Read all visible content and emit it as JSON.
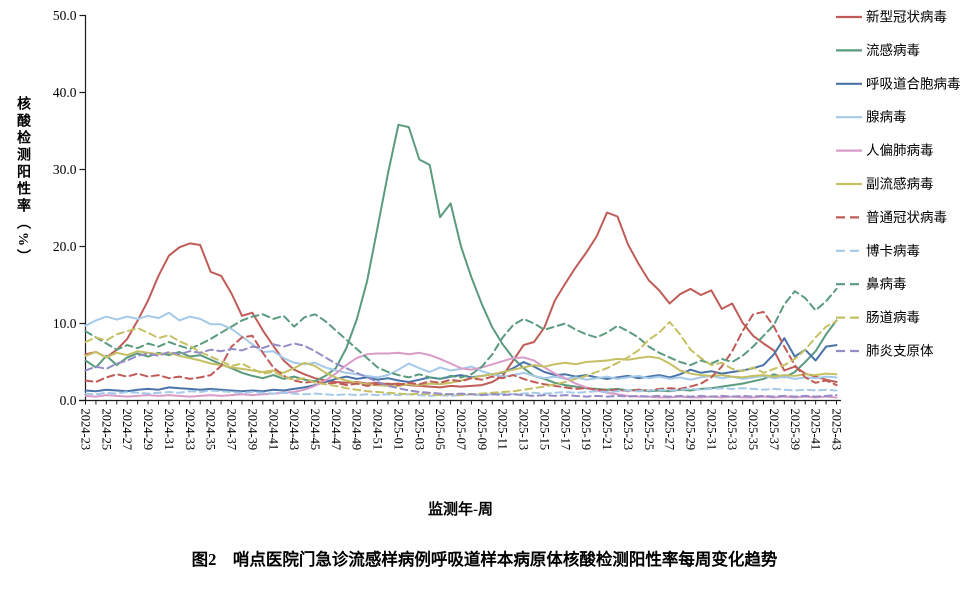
{
  "figure": {
    "caption": "图2　哨点医院门急诊流感样病例呼吸道样本病原体核酸检测阳性率每周变化趋势"
  },
  "chart_data": {
    "type": "line",
    "title": "",
    "xlabel": "监测年-周",
    "ylabel": "核酸检测阳性率（%）",
    "ylim": [
      0,
      50
    ],
    "yticks": [
      0,
      10,
      20,
      30,
      40,
      50
    ],
    "ytick_labels": [
      "0.0",
      "10.0",
      "20.0",
      "30.0",
      "40.0",
      "50.0"
    ],
    "x_label_every": 2,
    "grid": false,
    "legend_position": "right",
    "categories": [
      "2024-23",
      "2024-24",
      "2024-25",
      "2024-26",
      "2024-27",
      "2024-28",
      "2024-29",
      "2024-30",
      "2024-31",
      "2024-32",
      "2024-33",
      "2024-34",
      "2024-35",
      "2024-36",
      "2024-37",
      "2024-38",
      "2024-39",
      "2024-40",
      "2024-41",
      "2024-42",
      "2024-43",
      "2024-44",
      "2024-45",
      "2024-46",
      "2024-47",
      "2024-48",
      "2024-49",
      "2024-50",
      "2024-51",
      "2024-52",
      "2025-01",
      "2025-02",
      "2025-03",
      "2025-04",
      "2025-05",
      "2025-06",
      "2025-07",
      "2025-08",
      "2025-09",
      "2025-10",
      "2025-11",
      "2025-12",
      "2025-13",
      "2025-14",
      "2025-15",
      "2025-16",
      "2025-17",
      "2025-18",
      "2025-19",
      "2025-20",
      "2025-21",
      "2025-22",
      "2025-23",
      "2025-24",
      "2025-25",
      "2025-26",
      "2025-27",
      "2025-28",
      "2025-29",
      "2025-30",
      "2025-31",
      "2025-32",
      "2025-33",
      "2025-34",
      "2025-35",
      "2025-36",
      "2025-37",
      "2025-38",
      "2025-39",
      "2025-40",
      "2025-41",
      "2025-42",
      "2025-43"
    ],
    "series": [
      {
        "name": "新型冠状病毒",
        "color": "#C05C58",
        "line_style": "solid",
        "values": [
          6.0,
          6.3,
          5.6,
          6.6,
          8.0,
          10.4,
          13.0,
          16.2,
          18.8,
          19.9,
          20.4,
          20.2,
          16.7,
          16.2,
          13.9,
          11.0,
          11.4,
          9.1,
          7.1,
          5.2,
          4.0,
          3.4,
          2.9,
          2.6,
          2.4,
          2.3,
          2.4,
          2.2,
          2.3,
          2.1,
          2.2,
          2.0,
          1.9,
          1.8,
          1.7,
          1.9,
          1.8,
          1.9,
          2.0,
          2.4,
          3.2,
          5.2,
          7.2,
          7.6,
          9.5,
          13.0,
          15.2,
          17.3,
          19.2,
          21.3,
          24.4,
          23.9,
          20.3,
          17.8,
          15.6,
          14.3,
          12.6,
          13.8,
          14.5,
          13.7,
          14.3,
          11.9,
          12.6,
          10.1,
          8.4,
          7.4,
          6.5,
          3.9,
          4.4,
          3.5,
          3.1,
          2.7,
          2.4
        ]
      },
      {
        "name": "流感病毒",
        "color": "#5A9B7E",
        "line_style": "solid",
        "values": [
          5.2,
          4.3,
          5.8,
          4.6,
          5.6,
          6.1,
          5.7,
          6.2,
          5.9,
          6.3,
          5.7,
          5.9,
          5.3,
          4.7,
          4.2,
          3.6,
          3.2,
          2.9,
          3.3,
          2.8,
          3.1,
          2.7,
          2.5,
          3.2,
          4.2,
          6.8,
          10.5,
          15.5,
          22.5,
          29.5,
          35.8,
          35.5,
          31.3,
          30.6,
          23.8,
          25.6,
          20.0,
          16.0,
          12.5,
          9.5,
          7.3,
          5.5,
          4.2,
          3.2,
          2.8,
          2.3,
          2.0,
          1.8,
          1.6,
          1.5,
          1.4,
          1.5,
          1.3,
          1.4,
          1.2,
          1.3,
          1.2,
          1.4,
          1.3,
          1.5,
          1.6,
          1.8,
          2.0,
          2.2,
          2.5,
          2.8,
          3.4,
          3.0,
          3.7,
          5.0,
          6.4,
          8.6,
          10.4
        ]
      },
      {
        "name": "呼吸道合胞病毒",
        "color": "#4A74A8",
        "line_style": "solid",
        "values": [
          1.3,
          1.2,
          1.4,
          1.3,
          1.2,
          1.4,
          1.5,
          1.4,
          1.7,
          1.6,
          1.5,
          1.4,
          1.5,
          1.4,
          1.3,
          1.2,
          1.3,
          1.2,
          1.4,
          1.3,
          1.5,
          1.7,
          2.0,
          2.4,
          2.8,
          3.1,
          2.8,
          3.0,
          2.7,
          2.9,
          2.6,
          2.4,
          2.7,
          3.0,
          2.8,
          3.1,
          3.3,
          3.0,
          3.2,
          3.4,
          3.6,
          4.2,
          5.0,
          4.4,
          3.7,
          3.3,
          3.4,
          3.1,
          3.3,
          3.0,
          2.8,
          3.0,
          3.2,
          2.9,
          3.1,
          3.3,
          3.0,
          3.4,
          4.0,
          3.6,
          3.8,
          3.5,
          3.7,
          3.9,
          4.2,
          4.6,
          6.0,
          8.1,
          5.7,
          6.6,
          5.2,
          7.0,
          7.2
        ]
      },
      {
        "name": "腺病毒",
        "color": "#A5C9E8",
        "line_style": "solid",
        "values": [
          9.7,
          10.4,
          10.9,
          10.5,
          10.9,
          10.6,
          11.0,
          10.7,
          11.4,
          10.4,
          10.9,
          10.6,
          9.9,
          9.9,
          9.3,
          8.3,
          7.3,
          6.3,
          6.4,
          5.5,
          4.9,
          4.7,
          4.9,
          4.3,
          3.9,
          3.6,
          3.4,
          3.2,
          3.0,
          3.3,
          4.0,
          4.8,
          4.2,
          3.7,
          4.3,
          3.9,
          4.1,
          4.4,
          3.8,
          3.4,
          3.1,
          3.3,
          3.6,
          3.2,
          2.9,
          3.1,
          2.8,
          3.0,
          2.7,
          2.9,
          3.1,
          2.8,
          3.0,
          3.2,
          2.9,
          3.1,
          2.8,
          3.0,
          2.7,
          3.0,
          3.2,
          2.9,
          3.1,
          2.8,
          3.0,
          3.2,
          2.9,
          3.1,
          2.8,
          3.0,
          2.9,
          3.1,
          3.0
        ]
      },
      {
        "name": "人偏肺病毒",
        "color": "#D99CC8",
        "line_style": "solid",
        "values": [
          0.6,
          0.5,
          0.7,
          0.6,
          0.5,
          0.6,
          0.7,
          0.6,
          0.7,
          0.6,
          0.5,
          0.6,
          0.7,
          0.6,
          0.7,
          0.8,
          0.7,
          0.8,
          0.9,
          1.0,
          1.1,
          1.4,
          1.9,
          2.6,
          3.5,
          4.6,
          5.5,
          6.0,
          6.1,
          6.1,
          6.2,
          6.0,
          6.2,
          5.9,
          5.4,
          4.8,
          4.2,
          4.0,
          4.3,
          4.7,
          5.1,
          5.5,
          5.6,
          5.2,
          4.3,
          3.5,
          2.9,
          2.2,
          1.7,
          1.3,
          1.0,
          0.8,
          0.6,
          0.5,
          0.5,
          0.4,
          0.4,
          0.5,
          0.4,
          0.4,
          0.5,
          0.4,
          0.5,
          0.4,
          0.4,
          0.5,
          0.4,
          0.5,
          0.4,
          0.5,
          0.4,
          0.5,
          0.4
        ]
      },
      {
        "name": "副流感病毒",
        "color": "#C6C065",
        "line_style": "solid",
        "values": [
          5.8,
          6.3,
          5.6,
          6.2,
          5.9,
          6.4,
          6.2,
          6.0,
          6.2,
          5.8,
          5.5,
          5.2,
          4.8,
          4.6,
          4.3,
          4.1,
          3.9,
          3.7,
          3.9,
          3.6,
          4.2,
          4.9,
          4.5,
          3.6,
          3.0,
          2.6,
          2.3,
          2.1,
          2.0,
          1.9,
          1.9,
          2.1,
          2.0,
          2.2,
          2.1,
          2.3,
          2.6,
          2.9,
          3.2,
          3.4,
          3.7,
          4.0,
          4.3,
          4.6,
          4.4,
          4.7,
          4.9,
          4.7,
          5.0,
          5.1,
          5.2,
          5.4,
          5.3,
          5.5,
          5.7,
          5.5,
          4.8,
          3.9,
          3.5,
          3.3,
          3.2,
          3.3,
          3.1,
          3.0,
          3.2,
          3.3,
          3.1,
          3.3,
          3.2,
          3.4,
          3.3,
          3.5,
          3.4
        ]
      },
      {
        "name": "普通冠状病毒",
        "color": "#C05C58",
        "line_style": "dashed",
        "values": [
          2.6,
          2.4,
          3.0,
          3.4,
          3.1,
          3.5,
          3.1,
          3.3,
          2.9,
          3.1,
          2.8,
          3.0,
          3.3,
          4.5,
          7.0,
          8.2,
          8.4,
          6.2,
          4.3,
          3.2,
          2.6,
          2.3,
          2.5,
          2.2,
          2.3,
          2.0,
          2.2,
          1.9,
          2.1,
          2.2,
          2.0,
          2.3,
          2.1,
          2.5,
          2.3,
          2.7,
          2.5,
          2.9,
          2.7,
          3.1,
          2.9,
          3.3,
          2.8,
          2.4,
          2.1,
          1.9,
          1.7,
          1.5,
          1.6,
          1.4,
          1.3,
          1.4,
          1.2,
          1.4,
          1.3,
          1.5,
          1.6,
          1.5,
          1.8,
          2.2,
          3.0,
          4.4,
          6.4,
          9.0,
          11.2,
          11.5,
          9.6,
          7.0,
          4.6,
          3.0,
          2.3,
          2.6,
          2.0
        ]
      },
      {
        "name": "博卡病毒",
        "color": "#A5C9E8",
        "line_style": "dashed",
        "values": [
          0.9,
          0.8,
          1.0,
          0.9,
          1.1,
          1.0,
          0.9,
          1.0,
          1.1,
          1.0,
          1.2,
          1.1,
          1.3,
          1.2,
          1.1,
          1.0,
          1.1,
          1.0,
          0.9,
          1.0,
          0.9,
          0.8,
          0.9,
          0.8,
          0.7,
          0.8,
          0.7,
          0.8,
          0.7,
          0.8,
          0.7,
          0.8,
          0.7,
          0.6,
          0.7,
          0.6,
          0.7,
          0.8,
          0.7,
          0.8,
          0.9,
          0.8,
          0.9,
          1.0,
          0.9,
          1.0,
          1.1,
          1.0,
          1.1,
          1.2,
          1.1,
          1.2,
          1.3,
          1.2,
          1.3,
          1.4,
          1.3,
          1.4,
          1.5,
          1.4,
          1.5,
          1.6,
          1.5,
          1.6,
          1.5,
          1.4,
          1.5,
          1.4,
          1.3,
          1.4,
          1.3,
          1.4,
          1.3
        ]
      },
      {
        "name": "鼻病毒",
        "color": "#5A9B7E",
        "line_style": "dashed",
        "values": [
          9.0,
          8.2,
          7.4,
          6.6,
          7.2,
          6.8,
          7.4,
          7.0,
          7.6,
          7.1,
          6.7,
          7.3,
          8.0,
          8.8,
          9.6,
          10.4,
          10.9,
          11.2,
          10.6,
          11.0,
          9.6,
          10.8,
          11.2,
          10.3,
          9.1,
          7.9,
          6.7,
          5.5,
          4.3,
          3.7,
          3.3,
          3.0,
          3.4,
          3.0,
          2.8,
          3.2,
          3.0,
          3.4,
          4.4,
          6.0,
          8.2,
          9.8,
          10.6,
          10.0,
          9.2,
          9.6,
          10.0,
          9.2,
          8.6,
          8.2,
          8.8,
          9.7,
          9.0,
          8.2,
          7.0,
          6.2,
          5.6,
          5.0,
          4.6,
          5.2,
          4.8,
          5.4,
          5.0,
          5.8,
          7.0,
          8.4,
          9.8,
          12.5,
          14.2,
          13.3,
          11.7,
          12.9,
          14.5
        ]
      },
      {
        "name": "肠道病毒",
        "color": "#C6C065",
        "line_style": "dashed",
        "values": [
          7.6,
          8.2,
          7.8,
          8.6,
          9.0,
          9.4,
          8.8,
          8.1,
          8.5,
          7.7,
          7.1,
          6.3,
          5.7,
          5.1,
          4.5,
          4.8,
          4.1,
          3.5,
          3.7,
          3.1,
          2.7,
          2.9,
          2.3,
          2.1,
          1.9,
          1.6,
          1.4,
          1.2,
          1.1,
          1.0,
          0.9,
          0.8,
          0.9,
          0.8,
          0.7,
          0.8,
          0.7,
          0.8,
          0.9,
          1.0,
          1.1,
          1.2,
          1.4,
          1.6,
          1.8,
          2.1,
          2.4,
          2.8,
          3.2,
          3.7,
          4.2,
          4.9,
          5.6,
          6.5,
          7.9,
          8.8,
          10.2,
          8.6,
          6.6,
          5.5,
          4.6,
          4.9,
          4.1,
          3.8,
          4.3,
          3.6,
          4.1,
          4.6,
          5.4,
          6.6,
          8.2,
          9.6,
          10.3
        ]
      },
      {
        "name": "肺炎支原体",
        "color": "#958BC6",
        "line_style": "dashed",
        "values": [
          3.9,
          4.4,
          4.1,
          4.8,
          5.2,
          5.8,
          6.1,
          5.8,
          6.3,
          6.0,
          6.4,
          6.2,
          6.6,
          6.4,
          6.7,
          6.5,
          7.0,
          6.8,
          7.3,
          7.0,
          7.4,
          7.1,
          6.4,
          5.6,
          4.8,
          4.2,
          3.6,
          3.0,
          2.4,
          1.9,
          1.6,
          1.3,
          1.1,
          1.0,
          0.9,
          0.8,
          0.9,
          0.8,
          0.7,
          0.8,
          0.7,
          0.8,
          0.7,
          0.6,
          0.7,
          0.6,
          0.7,
          0.6,
          0.5,
          0.6,
          0.5,
          0.6,
          0.5,
          0.6,
          0.5,
          0.6,
          0.5,
          0.6,
          0.5,
          0.6,
          0.5,
          0.6,
          0.5,
          0.6,
          0.5,
          0.6,
          0.5,
          0.6,
          0.5,
          0.6,
          0.5,
          0.6,
          0.7
        ]
      }
    ]
  }
}
